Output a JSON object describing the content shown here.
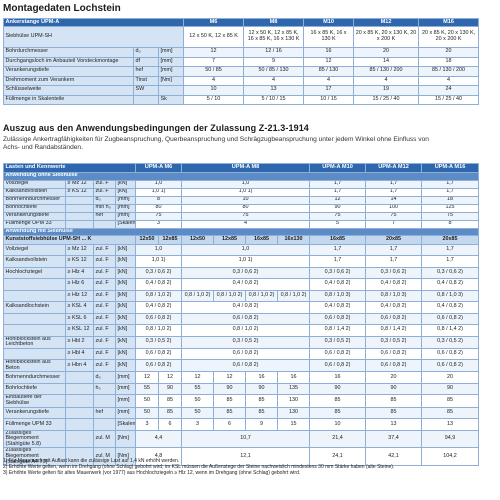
{
  "title": "Montagedaten Lochstein",
  "table1": {
    "header": [
      "Ankerstange UPM-A",
      "M6",
      "M8",
      "M10",
      "M12",
      "M16"
    ],
    "rows": [
      [
        "Siebhülse UPM-SH",
        "12 x 50 K, 12 x 85 K",
        "12 x 50 K, 12 x 85 K, 16 x 85 K, 16 x 130 K",
        "16 x 85 K, 16 x 130 K",
        "20 x 85 K, 20 x 130 K, 20 x 200 K",
        "20 x 85 K, 20 x 130 K, 20 x 200 K"
      ],
      [
        "Bohrdurchmesser",
        "d₀",
        "[mm]",
        "12",
        "12 / 16",
        "16",
        "20",
        "20"
      ],
      [
        "Durchgangsloch im Anbauteil Vorsteckmontage",
        "df",
        "[mm]",
        "7",
        "9",
        "12",
        "14",
        "18"
      ],
      [
        "Verankerungstiefe",
        "hef",
        "[mm]",
        "50 / 85",
        "50 / 85 / 130",
        "85 / 130",
        "85 / 130 / 200",
        "85 / 130 / 200"
      ],
      [
        "Drehmoment zum Verankern",
        "Tinst",
        "[Nm]",
        "4",
        "4",
        "4",
        "4",
        "4"
      ],
      [
        "Schlüsselweite",
        "SW",
        null,
        "10",
        "13",
        "17",
        "19",
        "24"
      ],
      [
        "Füllmenge in Skalenteile",
        null,
        "Sk",
        "5 / 10",
        "5 / 10 / 15",
        "10 / 15",
        "15 / 25 / 40",
        "15 / 25 / 40"
      ]
    ]
  },
  "section2": {
    "title": "Auszug aus den Anwendungsbedingungen der Zulassung Z-21.3-1914",
    "text": "Zulässige Ankertragfähigkeiten für Zugbeanspruchung, Querbeanspruchung und Schrägzugbeanspruchung unter jedem Winkel ohne Einfluss von Achs- und Randabständen."
  },
  "table2": {
    "header": [
      "Lasten und Kennwerte",
      "UPM-A M6",
      "UPM-A M8",
      "UPM-A M10",
      "UPM-A M12",
      "UPM-A M16"
    ],
    "section_a": "Anwendung ohne Siebhülse",
    "rows_a": [
      [
        "Vollziegel",
        "≥ Mz 12",
        "zul. F",
        "[kN]",
        "1,0",
        "1,0",
        "1,7",
        "1,7",
        "1,7"
      ],
      [
        "Kalksandvollstein",
        "≥ KS 12",
        "zul. F",
        "[kN]",
        "1,0 1)",
        "1,0 1)",
        "1,7",
        "1,7",
        "1,7"
      ],
      [
        "Bohrnenndurchmesser",
        null,
        "d₀",
        "[mm]",
        "8",
        "10",
        "12",
        "14",
        "18"
      ],
      [
        "Bohrlochtiefe",
        null,
        "min h₀",
        "[mm]",
        "80",
        "80",
        "90",
        "100",
        "125"
      ],
      [
        "Verankerungstiefe",
        null,
        "hef",
        "[mm]",
        "75",
        "75",
        "75",
        "75",
        "75"
      ],
      [
        "Füllmenge UPM 33",
        null,
        null,
        "[Skalenteile]",
        "3",
        "4",
        "5",
        "7",
        "8"
      ]
    ],
    "section_b": "Anwendung mit Siebhülse",
    "subheader": [
      "Kunststoffsiebhülse UPM-SH ... K",
      "12x50",
      "12x85",
      "12x50",
      "12x85",
      "16x85",
      "16x130",
      "16x85",
      "20x85",
      "20x85"
    ],
    "rows_b": [
      [
        "Vollziegel",
        "≥ Mz 12",
        "zul. F",
        "[kN]",
        "1,0",
        "1,0",
        "1,7",
        "1,7",
        "1,7"
      ],
      [
        "Kalksandvollstein",
        "≥ KS 12",
        "zul. F",
        "[kN]",
        "1,0 1)",
        "1,0 1)",
        "1,7",
        "1,7",
        "1,7"
      ],
      [
        "Hochlochziegel",
        "≥ Hlz 4",
        "zul. F",
        "[kN]",
        "0,3 / 0,6 2)",
        "0,3 / 0,6 2)",
        "0,3 / 0,6 2)",
        "0,3 / 0,6 2)",
        "0,3 / 0,6 2)"
      ],
      [
        null,
        "≥ Hlz 6",
        "zul. F",
        "[kN]",
        "0,4 / 0,8 2)",
        "0,4 / 0,8 2)",
        "0,4 / 0,8 2)",
        "0,4 / 0,8 2)",
        "0,4 / 0,8 2)"
      ],
      [
        null,
        "≥ Hlz 12",
        "zul. F",
        "[kN]",
        "0,8 / 1,0 2)",
        "0,8 / 1,0 2)",
        "0,8 / 1,0 2)",
        "0,8 / 1,0 2)",
        "0,8 / 1,0 2)",
        "0,8 / 1,0 3)",
        "0,8 / 1,0 3)",
        "0,8 / 1,0 3)"
      ],
      [
        "Kalksandlochstein",
        "≥ KSL 4",
        "zul. F",
        "[kN]",
        "0,4 / 0,8 2)",
        "0,4 / 0,8 2)",
        "0,4 / 0,8 2)",
        "0,4 / 0,8 2)",
        "0,4 / 0,8 2)"
      ],
      [
        null,
        "≥ KSL 6",
        "zul. F",
        "[kN]",
        "0,6 / 0,8 2)",
        "0,6 / 0,8 2)",
        "0,6 / 0,8 2)",
        "0,6 / 0,8 2)",
        "0,6 / 0,8 2)"
      ],
      [
        null,
        "≥ KSL 12",
        "zul. F",
        "[kN]",
        "0,8 / 1,0 2)",
        "0,8 / 1,0 2)",
        "0,8 / 1,4 2)",
        "0,8 / 1,4 2)",
        "0,8 / 1,4 2)"
      ],
      [
        "Hohlblockstein aus Leichtbeton",
        "≥ Hbl 2",
        "zul. F",
        "[kN]",
        "0,3 / 0,5 2)",
        "0,3 / 0,5 2)",
        "0,3 / 0,5 2)",
        "0,3 / 0,5 2)",
        "0,3 / 0,5 2)"
      ],
      [
        null,
        "≥ Hbl 4",
        "zul. F",
        "[kN]",
        "0,6 / 0,8 2)",
        "0,6 / 0,8 2)",
        "0,6 / 0,8 2)",
        "0,6 / 0,8 2)",
        "0,6 / 0,8 2)"
      ],
      [
        "Hohlblockstein aus Beton",
        "≥ Hbn 4",
        "zul. F",
        "[kN]",
        "0,6 / 0,8 2)",
        "0,6 / 0,8 2)",
        "0,6 / 0,8 2)",
        "0,6 / 0,8 2)",
        "0,6 / 0,8 2)"
      ],
      [
        "Bohrnenndurchmesser",
        null,
        "d₀",
        "[mm]",
        "12",
        "12",
        "12",
        "12",
        "16",
        "16",
        "16",
        "20",
        "20"
      ],
      [
        "Bohrlochtiefe",
        null,
        "h₀",
        "[mm]",
        "55",
        "90",
        "55",
        "90",
        "90",
        "135",
        "90",
        "90",
        "90"
      ],
      [
        "Einbautiefe der Siebhülse",
        null,
        null,
        "[mm]",
        "50",
        "85",
        "50",
        "85",
        "85",
        "130",
        "85",
        "85",
        "85"
      ],
      [
        "Verankerungstiefe",
        null,
        "hef",
        "[mm]",
        "50",
        "85",
        "50",
        "85",
        "85",
        "130",
        "85",
        "85",
        "85"
      ],
      [
        "Füllmenge UPM 33",
        null,
        null,
        "[Skalenteile]",
        "3",
        "6",
        "3",
        "6",
        "9",
        "15",
        "10",
        "13",
        "13"
      ],
      [
        "Zulässiges Biegemoment (Stahlgüte 5.8)",
        null,
        "zul. M",
        "[Nm]",
        "4,4",
        "10,7",
        "21,4",
        "37,4",
        "94,9"
      ],
      [
        "Zulässiges Biegemoment (Stahlgüte A4-70)",
        null,
        "zul. M",
        "[Nm]",
        "4,8",
        "12,1",
        "24,1",
        "42,1",
        "104,2"
      ]
    ]
  },
  "footnotes": [
    "1) Für Mauerwerk mit Auflast kann die zulässige Last auf 1,4 kN erhöht werden.",
    "2) Erhöhte Werte gelten, wenn im Drehgang (ohne Schlag) gebohrt wird; im KSL müssen die Außenstege der Steine nachweislich mindestens 30 mm Stärke haben (alte Steine).",
    "3) Erhöhte Werte gelten für altes Mauerwerk (vor 1977) aus Hochlochziegeln ≥ Hlz 12, wenn im Drehgang (ohne Schlag) gebohrt wird."
  ]
}
